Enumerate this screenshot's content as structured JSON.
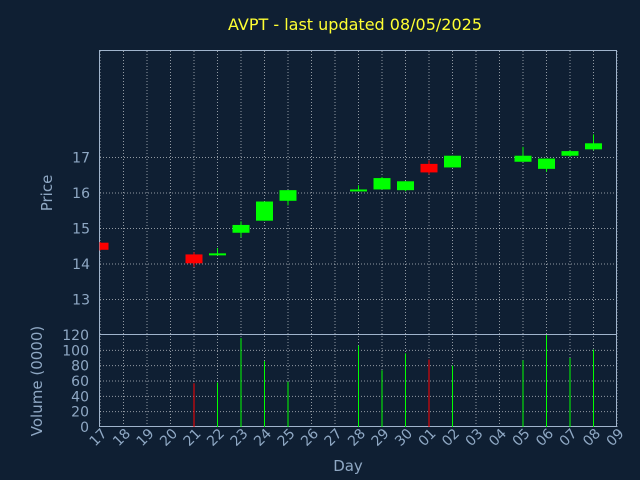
{
  "chart_data": {
    "type": "candlestick",
    "title": "AVPT - last updated 08/05/2025",
    "xlabel": "Day",
    "x_ticks": [
      "17",
      "18",
      "19",
      "20",
      "21",
      "22",
      "23",
      "24",
      "25",
      "26",
      "27",
      "28",
      "29",
      "30",
      "01",
      "02",
      "03",
      "04",
      "05",
      "06",
      "07",
      "08",
      "09"
    ],
    "price_panel": {
      "ylabel": "Price",
      "ylim": [
        12.0,
        20.0
      ],
      "y_ticks": [
        13,
        14,
        15,
        16,
        17
      ],
      "grid": true
    },
    "volume_panel": {
      "ylabel": "Volume (0000)",
      "ylim": [
        0,
        120
      ],
      "y_ticks": [
        0,
        20,
        40,
        60,
        80,
        100,
        120
      ],
      "grid": true
    },
    "colors": {
      "up": "#00ff00",
      "down": "#ff0000",
      "background": "#0f1f33",
      "title": "#ffff33",
      "text": "#8fa8c4"
    },
    "candles": [
      {
        "x": "17",
        "open": 14.6,
        "close": 14.4,
        "high": 14.62,
        "low": 14.38
      },
      {
        "x": "21",
        "open": 14.27,
        "close": 14.02,
        "high": 14.33,
        "low": 13.92
      },
      {
        "x": "22",
        "open": 14.25,
        "close": 14.3,
        "high": 14.45,
        "low": 14.25
      },
      {
        "x": "23",
        "open": 14.88,
        "close": 15.1,
        "high": 15.2,
        "low": 14.75
      },
      {
        "x": "24",
        "open": 15.22,
        "close": 15.76,
        "high": 15.76,
        "low": 15.22
      },
      {
        "x": "25",
        "open": 15.78,
        "close": 16.08,
        "high": 16.08,
        "low": 15.65
      },
      {
        "x": "28",
        "open": 16.05,
        "close": 16.1,
        "high": 16.22,
        "low": 16.05
      },
      {
        "x": "29",
        "open": 16.1,
        "close": 16.42,
        "high": 16.45,
        "low": 16.1
      },
      {
        "x": "30",
        "open": 16.08,
        "close": 16.33,
        "high": 16.33,
        "low": 16.05
      },
      {
        "x": "01",
        "open": 16.82,
        "close": 16.58,
        "high": 16.92,
        "low": 16.52
      },
      {
        "x": "02",
        "open": 16.72,
        "close": 17.05,
        "high": 17.05,
        "low": 16.72
      },
      {
        "x": "05",
        "open": 16.88,
        "close": 17.05,
        "high": 17.3,
        "low": 16.88
      },
      {
        "x": "06",
        "open": 16.68,
        "close": 16.97,
        "high": 16.97,
        "low": 16.6
      },
      {
        "x": "07",
        "open": 17.05,
        "close": 17.18,
        "high": 17.2,
        "low": 17.02
      },
      {
        "x": "08",
        "open": 17.23,
        "close": 17.4,
        "high": 17.65,
        "low": 17.2
      }
    ],
    "volume": [
      {
        "x": "17",
        "value": 0,
        "dir": "down"
      },
      {
        "x": "21",
        "value": 57,
        "dir": "down"
      },
      {
        "x": "22",
        "value": 58,
        "dir": "up"
      },
      {
        "x": "23",
        "value": 116,
        "dir": "up"
      },
      {
        "x": "24",
        "value": 86,
        "dir": "up"
      },
      {
        "x": "25",
        "value": 59,
        "dir": "up"
      },
      {
        "x": "28",
        "value": 106,
        "dir": "up"
      },
      {
        "x": "29",
        "value": 74,
        "dir": "up"
      },
      {
        "x": "30",
        "value": 96,
        "dir": "up"
      },
      {
        "x": "01",
        "value": 88,
        "dir": "down"
      },
      {
        "x": "02",
        "value": 80,
        "dir": "up"
      },
      {
        "x": "05",
        "value": 87,
        "dir": "up"
      },
      {
        "x": "06",
        "value": 120,
        "dir": "up"
      },
      {
        "x": "07",
        "value": 90,
        "dir": "up"
      },
      {
        "x": "08",
        "value": 101,
        "dir": "up"
      }
    ]
  }
}
